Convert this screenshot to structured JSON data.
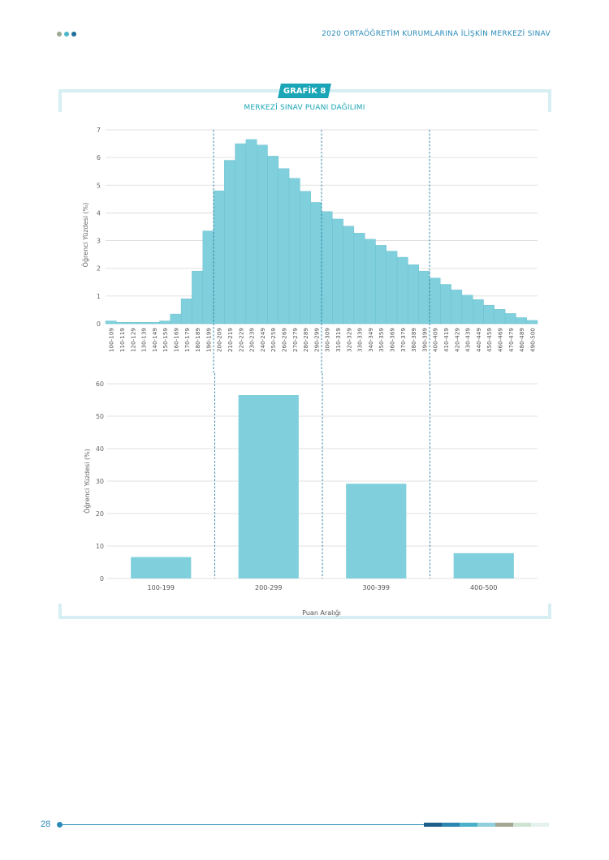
{
  "header": {
    "title": "2020 ORTAÖĞRETİM KURUMLARINA İLİŞKİN MERKEZİ SINAV",
    "dot_colors": [
      "#9aa98f",
      "#4bb8c9",
      "#1d6f9a"
    ]
  },
  "badge": {
    "label": "GRAFİK 8"
  },
  "chart_title": "MERKEZİ SINAV PUANI DAĞILIMI",
  "footer": {
    "page_number": "28",
    "bar_colors": [
      "#1d5f8a",
      "#2a86b0",
      "#4bb1c8",
      "#8fd0dc",
      "#a5a890",
      "#cfe3d2",
      "#e4f1ec"
    ]
  },
  "chart_data": [
    {
      "type": "bar",
      "ylabel": "Öğrenci Yüzdesi (%)",
      "ylim": [
        0,
        7
      ],
      "yticks": [
        0,
        1,
        2,
        3,
        4,
        5,
        6,
        7
      ],
      "grid": true,
      "color": "#7fd0dc",
      "categories": [
        "100-109",
        "110-119",
        "120-129",
        "130-139",
        "140-149",
        "150-159",
        "160-169",
        "170-179",
        "180-189",
        "190-199",
        "200-209",
        "210-219",
        "220-229",
        "230-239",
        "240-249",
        "250-259",
        "260-269",
        "270-279",
        "280-289",
        "290-299",
        "300-309",
        "310-319",
        "320-329",
        "330-339",
        "340-349",
        "350-359",
        "360-369",
        "370-379",
        "380-389",
        "390-399",
        "400-409",
        "410-419",
        "420-429",
        "430-439",
        "440-449",
        "450-459",
        "460-469",
        "470-479",
        "480-489",
        "490-500"
      ],
      "values": [
        0.1,
        0.05,
        0.05,
        0.05,
        0.05,
        0.1,
        0.35,
        0.9,
        1.9,
        3.35,
        4.8,
        5.9,
        6.5,
        6.65,
        6.45,
        6.05,
        5.6,
        5.25,
        4.78,
        4.38,
        4.05,
        3.78,
        3.52,
        3.27,
        3.05,
        2.83,
        2.62,
        2.4,
        2.13,
        1.9,
        1.65,
        1.42,
        1.22,
        1.03,
        0.87,
        0.67,
        0.52,
        0.37,
        0.22,
        0.12
      ],
      "dividers_after": [
        "190-199",
        "290-299",
        "390-399"
      ]
    },
    {
      "type": "bar",
      "ylabel": "Öğrenci Yüzdesi (%)",
      "xlabel": "Puan Aralığı",
      "ylim": [
        0,
        60
      ],
      "yticks": [
        0,
        10,
        20,
        30,
        40,
        50,
        60
      ],
      "grid": true,
      "color": "#7fd0dc",
      "categories": [
        "100-199",
        "200-299",
        "300-399",
        "400-500"
      ],
      "values": [
        6.6,
        56.5,
        29.2,
        7.8
      ]
    }
  ]
}
